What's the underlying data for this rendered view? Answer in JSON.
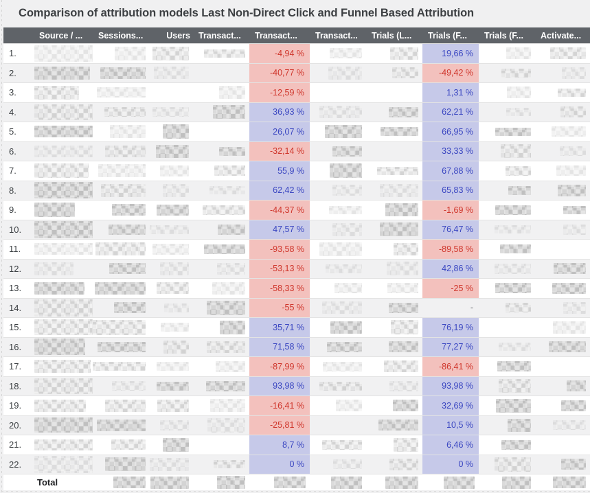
{
  "page": {
    "title": "Comparison of attribution models Last Non-Direct Click and Funnel Based Attribution"
  },
  "table": {
    "columns": [
      {
        "key": "index",
        "label": ""
      },
      {
        "key": "source-medium",
        "label": "Source / ..."
      },
      {
        "key": "sessions",
        "label": "Sessions..."
      },
      {
        "key": "users",
        "label": "Users"
      },
      {
        "key": "transactions-lndc",
        "label": "Transact..."
      },
      {
        "key": "transactions-delta",
        "label": "Transact..."
      },
      {
        "key": "transactions-fba",
        "label": "Transact..."
      },
      {
        "key": "trials-lndc",
        "label": "Trials (L..."
      },
      {
        "key": "trials-delta",
        "label": "Trials (F..."
      },
      {
        "key": "trials-fba",
        "label": "Trials (F..."
      },
      {
        "key": "activations",
        "label": "Activate..."
      }
    ],
    "rows": [
      {
        "num": "1.",
        "transactions_delta": "-4,94 %",
        "transactions_trend": "negative",
        "trials_delta": "19,66 %",
        "trials_trend": "positive"
      },
      {
        "num": "2.",
        "transactions_delta": "-40,77 %",
        "transactions_trend": "negative",
        "trials_delta": "-49,42 %",
        "trials_trend": "negative"
      },
      {
        "num": "3.",
        "transactions_delta": "-12,59 %",
        "transactions_trend": "negative",
        "trials_delta": "1,31 %",
        "trials_trend": "positive"
      },
      {
        "num": "4.",
        "transactions_delta": "36,93 %",
        "transactions_trend": "positive",
        "trials_delta": "62,21 %",
        "trials_trend": "positive"
      },
      {
        "num": "5.",
        "transactions_delta": "26,07 %",
        "transactions_trend": "positive",
        "trials_delta": "66,95 %",
        "trials_trend": "positive"
      },
      {
        "num": "6.",
        "transactions_delta": "-32,14 %",
        "transactions_trend": "negative",
        "trials_delta": "33,33 %",
        "trials_trend": "positive"
      },
      {
        "num": "7.",
        "transactions_delta": "55,9 %",
        "transactions_trend": "positive",
        "trials_delta": "67,88 %",
        "trials_trend": "positive"
      },
      {
        "num": "8.",
        "transactions_delta": "62,42 %",
        "transactions_trend": "positive",
        "trials_delta": "65,83 %",
        "trials_trend": "positive"
      },
      {
        "num": "9.",
        "transactions_delta": "-44,37 %",
        "transactions_trend": "negative",
        "trials_delta": "-1,69 %",
        "trials_trend": "negative"
      },
      {
        "num": "10.",
        "transactions_delta": "47,57 %",
        "transactions_trend": "positive",
        "trials_delta": "76,47 %",
        "trials_trend": "positive"
      },
      {
        "num": "11.",
        "transactions_delta": "-93,58 %",
        "transactions_trend": "negative",
        "trials_delta": "-89,58 %",
        "trials_trend": "negative"
      },
      {
        "num": "12.",
        "transactions_delta": "-53,13 %",
        "transactions_trend": "negative",
        "trials_delta": "42,86 %",
        "trials_trend": "positive"
      },
      {
        "num": "13.",
        "transactions_delta": "-58,33 %",
        "transactions_trend": "negative",
        "trials_delta": "-25 %",
        "trials_trend": "negative"
      },
      {
        "num": "14.",
        "transactions_delta": "-55 %",
        "transactions_trend": "negative",
        "trials_delta": "-",
        "trials_trend": "none"
      },
      {
        "num": "15.",
        "transactions_delta": "35,71 %",
        "transactions_trend": "positive",
        "trials_delta": "76,19 %",
        "trials_trend": "positive"
      },
      {
        "num": "16.",
        "transactions_delta": "71,58 %",
        "transactions_trend": "positive",
        "trials_delta": "77,27 %",
        "trials_trend": "positive"
      },
      {
        "num": "17.",
        "transactions_delta": "-87,99 %",
        "transactions_trend": "negative",
        "trials_delta": "-86,41 %",
        "trials_trend": "negative"
      },
      {
        "num": "18.",
        "transactions_delta": "93,98 %",
        "transactions_trend": "positive",
        "trials_delta": "93,98 %",
        "trials_trend": "positive"
      },
      {
        "num": "19.",
        "transactions_delta": "-16,41 %",
        "transactions_trend": "negative",
        "trials_delta": "32,69 %",
        "trials_trend": "positive"
      },
      {
        "num": "20.",
        "transactions_delta": "-25,81 %",
        "transactions_trend": "negative",
        "trials_delta": "10,5 %",
        "trials_trend": "positive"
      },
      {
        "num": "21.",
        "transactions_delta": "8,7 %",
        "transactions_trend": "positive",
        "trials_delta": "6,46 %",
        "trials_trend": "positive"
      },
      {
        "num": "22.",
        "transactions_delta": "0 %",
        "transactions_trend": "positive",
        "trials_delta": "0 %",
        "trials_trend": "positive"
      }
    ],
    "total_label": "Total"
  },
  "colors": {
    "header_bg": "#5f6368",
    "negative_bg": "#f3c1bd",
    "negative_text": "#cf352b",
    "positive_bg": "#c6c9e9",
    "positive_text": "#3a46c1",
    "row_alt_bg": "#f1f1f2"
  }
}
